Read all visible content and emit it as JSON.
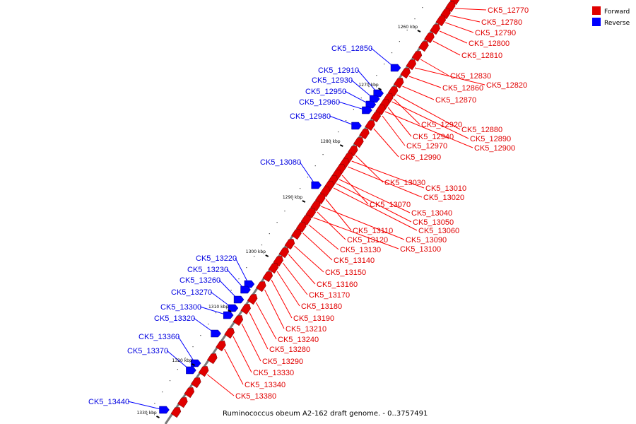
{
  "caption": "Ruminococcus obeum A2-162 draft genome. - 0..3757491",
  "legend": [
    {
      "label": "Forward",
      "color": "#e00000"
    },
    {
      "label": "Reverse",
      "color": "#0000ff"
    }
  ],
  "colors": {
    "forward": "#e00000",
    "reverse": "#0000ff",
    "backbone": "#7a7a7a",
    "leader_forward": "#ff0000",
    "leader_reverse": "#0000ff"
  },
  "kbp_labels": [
    "1260 kbp",
    "1270 kbp",
    "1280 kbp",
    "1290 kbp",
    "1300 kbp",
    "1310 kbp",
    "1320 kbp",
    "1330 kbp"
  ],
  "forward_genes": [
    "CK5_12770",
    "CK5_12780",
    "CK5_12790",
    "CK5_12800",
    "CK5_12810",
    "CK5_12830",
    "CK5_12820",
    "CK5_12860",
    "CK5_12870",
    "CK5_12880",
    "CK5_12920",
    "CK5_12890",
    "CK5_12940",
    "CK5_12900",
    "CK5_12970",
    "CK5_12990",
    "CK5_13030",
    "CK5_13010",
    "CK5_13020",
    "CK5_13070",
    "CK5_13040",
    "CK5_13050",
    "CK5_13060",
    "CK5_13110",
    "CK5_13090",
    "CK5_13120",
    "CK5_13100",
    "CK5_13130",
    "CK5_13140",
    "CK5_13150",
    "CK5_13160",
    "CK5_13170",
    "CK5_13180",
    "CK5_13190",
    "CK5_13210",
    "CK5_13240",
    "CK5_13280",
    "CK5_13290",
    "CK5_13330",
    "CK5_13340",
    "CK5_13380"
  ],
  "reverse_genes": [
    "CK5_12850",
    "CK5_12910",
    "CK5_12930",
    "CK5_12950",
    "CK5_12960",
    "CK5_12980",
    "CK5_13080",
    "CK5_13220",
    "CK5_13230",
    "CK5_13260",
    "CK5_13270",
    "CK5_13300",
    "CK5_13320",
    "CK5_13360",
    "CK5_13370",
    "CK5_13440"
  ]
}
